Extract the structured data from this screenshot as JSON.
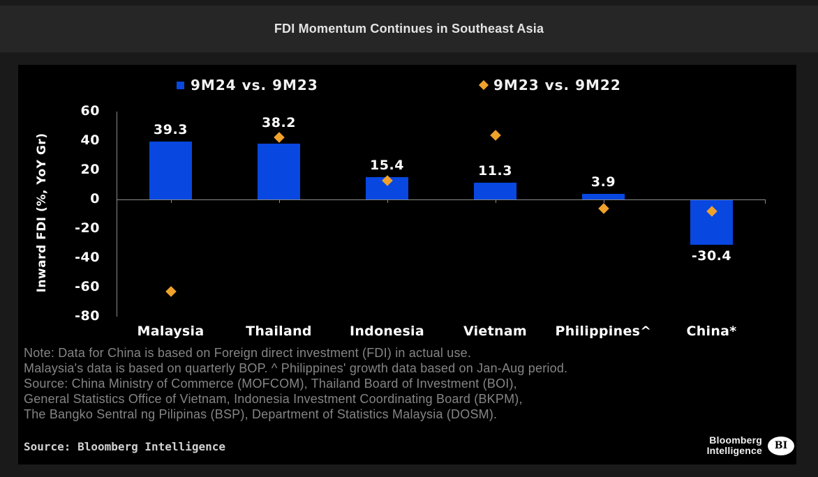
{
  "header": {
    "title": "FDI Momentum Continues in Southeast Asia"
  },
  "colors": {
    "page_bg": "#1a1a1a",
    "title_bar_bg": "#262626",
    "panel_bg": "#000000",
    "bar_blue": "#0847e0",
    "diamond_orange": "#f0a22c",
    "axis_gray": "#8c8c8c",
    "label_white": "#ffffff",
    "note_gray": "#858585",
    "source_gray": "#d2d2d2"
  },
  "chart_data": {
    "type": "bar",
    "title": "FDI Momentum Continues in Southeast Asia",
    "categories": [
      "Malaysia",
      "Thailand",
      "Indonesia",
      "Vietnam",
      "Philippines^",
      "China*"
    ],
    "series": [
      {
        "name": "9M24 vs. 9M23",
        "type": "bar",
        "color": "#0847e0",
        "values": [
          39.3,
          38.2,
          15.4,
          11.3,
          3.9,
          -30.4
        ],
        "value_labels": [
          "39.3",
          "38.2",
          "15.4",
          "11.3",
          "3.9",
          "-30.4"
        ]
      },
      {
        "name": "9M23 vs. 9M22",
        "type": "scatter",
        "marker": "diamond",
        "color": "#f0a22c",
        "values": [
          -63,
          42.5,
          13,
          44,
          -6,
          -8
        ]
      }
    ],
    "xlabel": "",
    "ylabel": "Inward FDI (%, YoY Gr)",
    "ylim": [
      -80,
      60
    ],
    "yticks": [
      60,
      40,
      20,
      0,
      -20,
      -40,
      -60,
      -80
    ],
    "grid": false,
    "legend_position": "top"
  },
  "notes": {
    "lines": [
      "Note: Data for China is based on Foreign direct investment (FDI) in actual use.",
      "Malaysia's data is based on quarterly BOP. ^ Philippines' growth data based on Jan-Aug period.",
      "Source: China Ministry of Commerce (MOFCOM), Thailand Board of Investment (BOI),",
      "General Statistics Office of Vietnam, Indonesia Investment Coordinating Board (BKPM),",
      "The Bangko Sentral ng Pilipinas (BSP), Department of Statistics Malaysia (DOSM)."
    ]
  },
  "footer": {
    "source": "Source: Bloomberg Intelligence",
    "logo": {
      "line1": "Bloomberg",
      "line2": "Intelligence",
      "badge": "BI"
    }
  }
}
